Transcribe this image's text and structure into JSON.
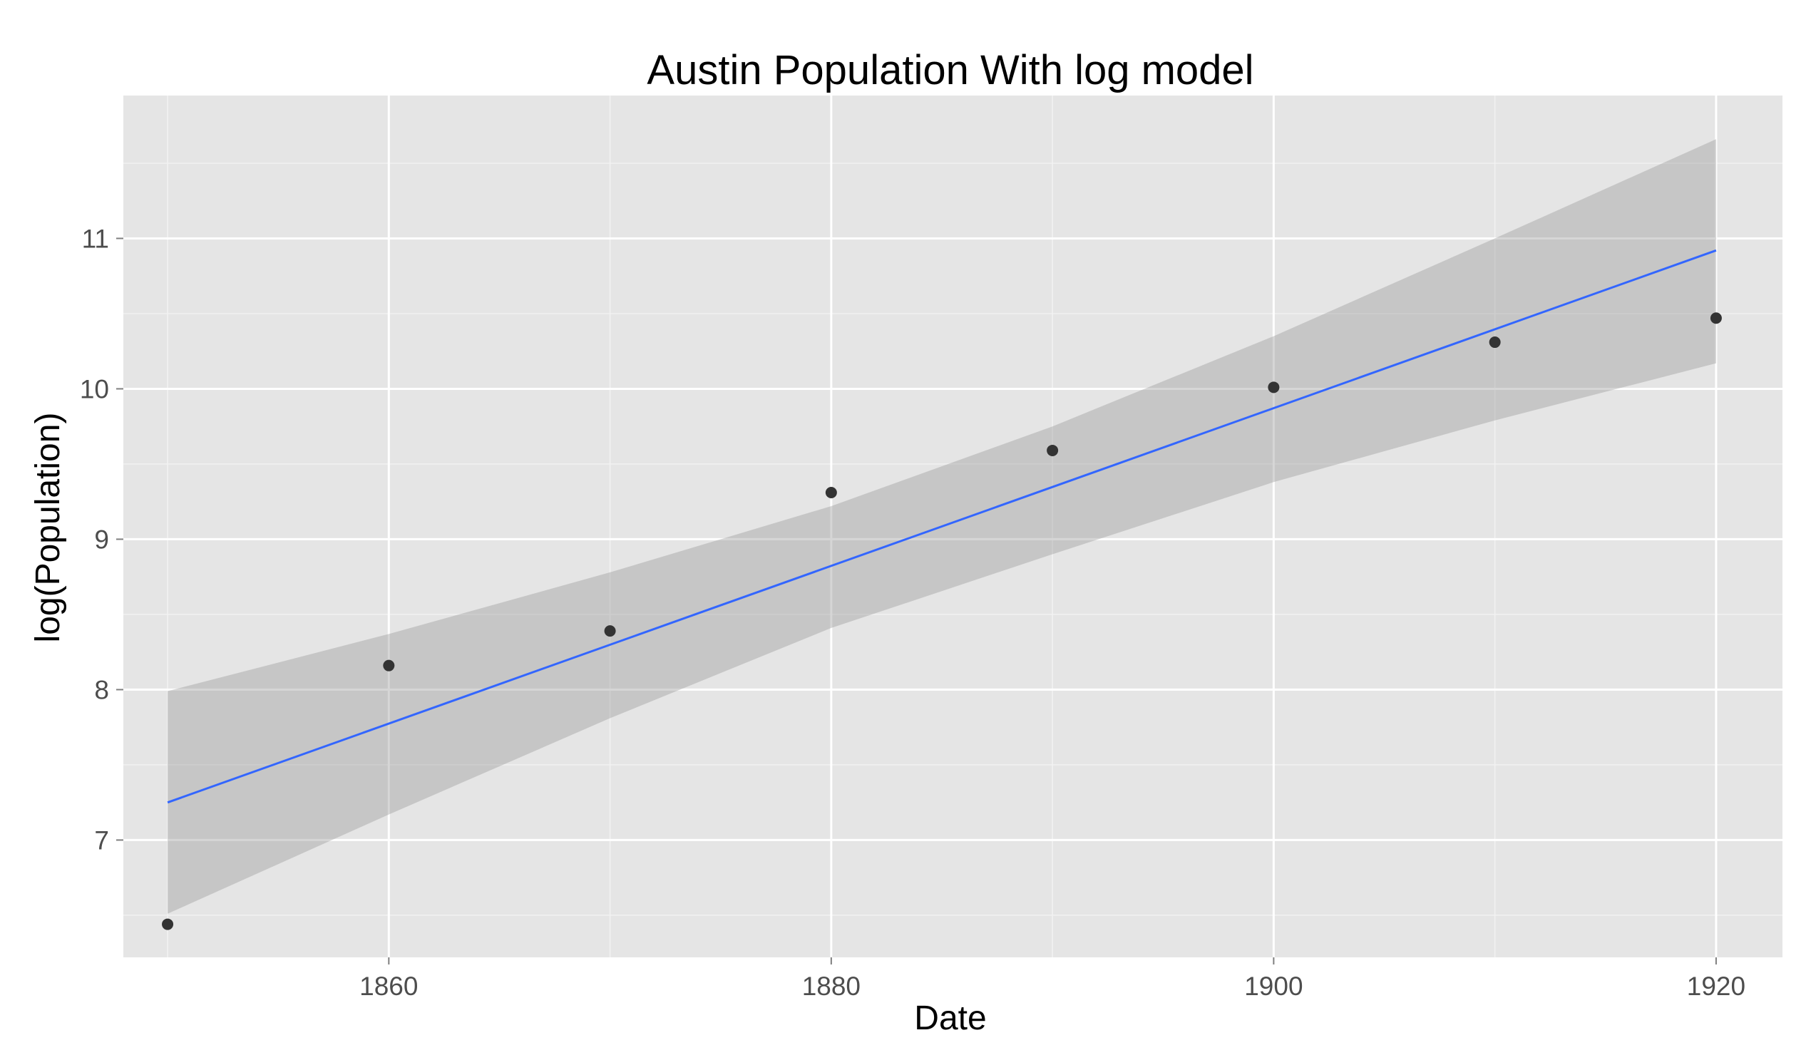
{
  "chart_data": {
    "type": "scatter",
    "title": "Austin Population With log model",
    "xlabel": "Date",
    "ylabel": "log(Population)",
    "xlim": [
      1848,
      1923
    ],
    "ylim": [
      6.22,
      11.95
    ],
    "x_ticks": [
      1860,
      1880,
      1900,
      1920
    ],
    "x_tick_labels": [
      "1860",
      "1880",
      "1900",
      "1920"
    ],
    "x_minor_ticks": [
      1850,
      1870,
      1890,
      1910
    ],
    "y_ticks": [
      7,
      8,
      9,
      10,
      11
    ],
    "y_tick_labels": [
      "7",
      "8",
      "9",
      "10",
      "11"
    ],
    "y_minor_ticks": [
      6.5,
      7.5,
      8.5,
      9.5,
      10.5,
      11.5
    ],
    "grid": true,
    "series": [
      {
        "kind": "points",
        "x": [
          1850,
          1860,
          1870,
          1880,
          1890,
          1900,
          1910,
          1920
        ],
        "y": [
          6.44,
          8.16,
          8.39,
          9.31,
          9.59,
          10.01,
          10.31,
          10.47
        ],
        "color": "#333333"
      },
      {
        "kind": "fit-line",
        "x": [
          1850,
          1920
        ],
        "y": [
          7.25,
          10.92
        ],
        "color": "#3366ff"
      },
      {
        "kind": "confidence-band",
        "x": [
          1850,
          1860,
          1870,
          1880,
          1890,
          1900,
          1910,
          1920
        ],
        "upper": [
          7.99,
          8.37,
          8.78,
          9.22,
          9.75,
          10.35,
          11.0,
          11.66
        ],
        "lower": [
          6.51,
          7.17,
          7.81,
          8.41,
          8.9,
          9.38,
          9.79,
          10.17
        ],
        "color": "#999999"
      }
    ],
    "colors": {
      "panel_background": "#e5e5e5",
      "grid_major": "#ffffff",
      "grid_minor": "#f2f2f2",
      "tick_label": "#4d4d4d",
      "tick_mark": "#7f7f7f"
    }
  }
}
